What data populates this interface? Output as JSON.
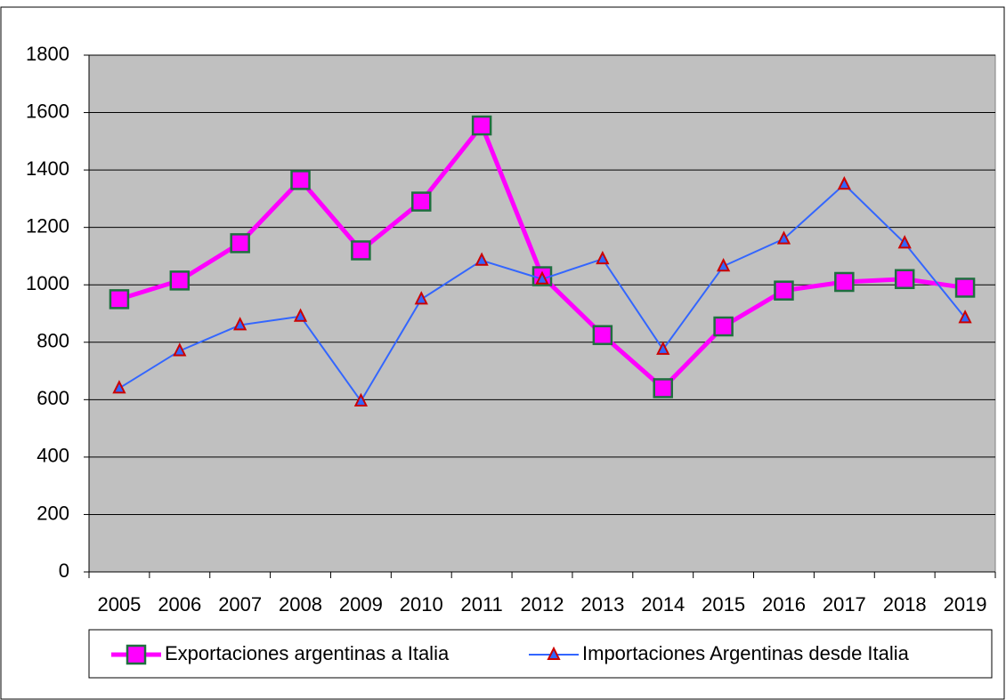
{
  "chart_data": {
    "type": "line",
    "categories": [
      "2005",
      "2006",
      "2007",
      "2008",
      "2009",
      "2010",
      "2011",
      "2012",
      "2013",
      "2014",
      "2015",
      "2016",
      "2017",
      "2018",
      "2019"
    ],
    "series": [
      {
        "name": "Exportaciones argentinas a Italia",
        "color": "#ff00ff",
        "marker": "square",
        "marker_fill": "#ff00ff",
        "marker_edge": "#1f6f3f",
        "values": [
          950,
          1015,
          1145,
          1365,
          1120,
          1290,
          1555,
          1030,
          825,
          640,
          855,
          980,
          1010,
          1020,
          990
        ]
      },
      {
        "name": "Importaciones Argentinas desde Italia",
        "color": "#3366ff",
        "marker": "triangle",
        "marker_fill": "#3366ff",
        "marker_edge": "#cc0000",
        "values": [
          640,
          770,
          860,
          890,
          595,
          950,
          1085,
          1020,
          1090,
          775,
          1065,
          1160,
          1350,
          1145,
          885
        ]
      }
    ],
    "ylim": [
      0,
      1800
    ],
    "yticks": [
      0,
      200,
      400,
      600,
      800,
      1000,
      1200,
      1400,
      1600,
      1800
    ],
    "grid": true,
    "plot_background": "#c0c0c0",
    "legend": "bottom"
  }
}
